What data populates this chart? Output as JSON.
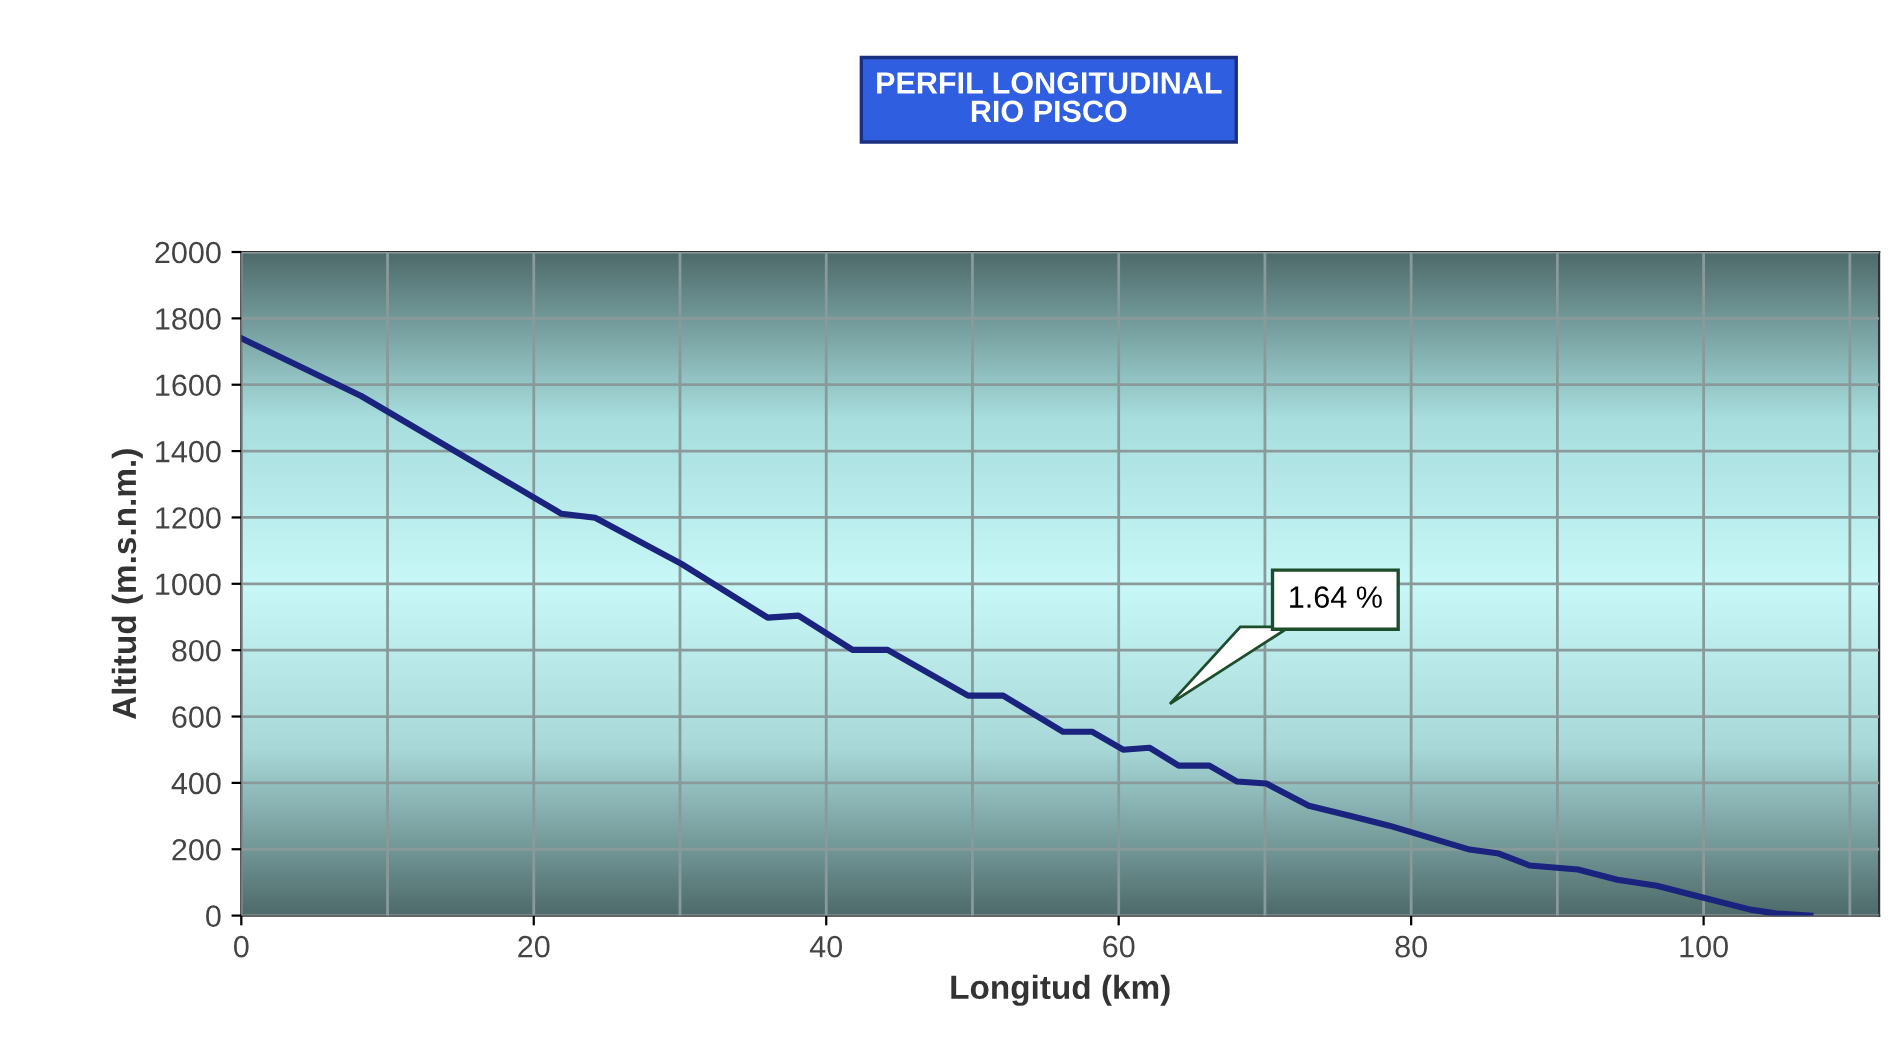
{
  "chart_data": {
    "type": "line",
    "title": "PERFIL LONGITUDINAL\nRIO PISCO",
    "xlabel": "Longitud (km)",
    "ylabel": "Altitud (m.s.n.m.)",
    "x": [
      0,
      8.2,
      21.9,
      24.2,
      30.1,
      36,
      38.1,
      41.8,
      44.2,
      49.7,
      52.1,
      56.2,
      58.2,
      60.3,
      62.1,
      64.1,
      66.2,
      68.1,
      70.1,
      73,
      75.8,
      78.5,
      84,
      86,
      88.1,
      91.4,
      94.1,
      96.8,
      100,
      103.2,
      105,
      107.3
    ],
    "series": [
      {
        "color": "#1a237e",
        "values": [
          1740,
          1566,
          1211,
          1199,
          1060,
          898,
          904,
          801,
          801,
          663,
          663,
          554,
          554,
          500,
          506,
          452,
          452,
          404,
          398,
          331,
          301,
          271,
          199,
          187,
          151,
          139,
          108,
          90,
          54,
          18,
          6,
          0
        ]
      }
    ],
    "xlim": [
      0,
      112
    ],
    "xticks": [
      0,
      {
        "value": 10,
        "label": null
      },
      20,
      {
        "value": 30,
        "label": null
      },
      40,
      {
        "value": 50,
        "label": null
      },
      60,
      {
        "value": 70,
        "label": null
      },
      80,
      {
        "value": 90,
        "label": null
      },
      100,
      {
        "value": 110,
        "label": null
      }
    ],
    "ylim": [
      0,
      2000
    ],
    "yticks": [
      0,
      200,
      400,
      600,
      800,
      1000,
      1200,
      1400,
      1600,
      1800,
      2000
    ],
    "grid": true,
    "legend": false,
    "marker": "none",
    "line_style": "solid",
    "annotations": [
      "1.64 %"
    ]
  }
}
